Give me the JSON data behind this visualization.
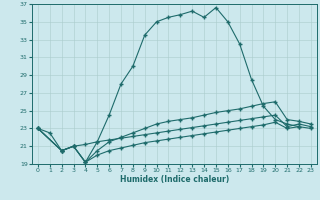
{
  "xlabel": "Humidex (Indice chaleur)",
  "xlim": [
    -0.5,
    23.5
  ],
  "ylim": [
    19,
    37
  ],
  "xticks": [
    0,
    1,
    2,
    3,
    4,
    5,
    6,
    7,
    8,
    9,
    10,
    11,
    12,
    13,
    14,
    15,
    16,
    17,
    18,
    19,
    20,
    21,
    22,
    23
  ],
  "yticks": [
    19,
    21,
    23,
    25,
    27,
    29,
    31,
    33,
    35,
    37
  ],
  "bg_color": "#cce8ed",
  "line_color": "#1e6b6b",
  "grid_color": "#aacccc",
  "line1_x": [
    0,
    1,
    2,
    3,
    4,
    5,
    6,
    7,
    8,
    9,
    10,
    11,
    12,
    13,
    14,
    15,
    16,
    17,
    18,
    19,
    20,
    21,
    22
  ],
  "line1_y": [
    23.0,
    22.5,
    20.5,
    21.0,
    19.2,
    21.5,
    24.5,
    28.0,
    30.0,
    33.5,
    35.0,
    35.5,
    35.8,
    36.2,
    35.5,
    36.6,
    35.0,
    32.5,
    28.5,
    25.5,
    24.0,
    23.5,
    23.2
  ],
  "line2_x": [
    0,
    2,
    3,
    4,
    5,
    6,
    7,
    8,
    9,
    10,
    11,
    12,
    13,
    14,
    15,
    16,
    17,
    18,
    19,
    20,
    21,
    22,
    23
  ],
  "line2_y": [
    23.0,
    20.5,
    21.0,
    19.2,
    20.5,
    21.5,
    22.0,
    22.5,
    23.0,
    23.5,
    23.8,
    24.0,
    24.2,
    24.5,
    24.8,
    25.0,
    25.2,
    25.5,
    25.8,
    26.0,
    24.0,
    23.8,
    23.5
  ],
  "line3_x": [
    0,
    2,
    3,
    4,
    5,
    6,
    7,
    8,
    9,
    10,
    11,
    12,
    13,
    14,
    15,
    16,
    17,
    18,
    19,
    20,
    21,
    22,
    23
  ],
  "line3_y": [
    23.0,
    20.5,
    21.0,
    21.2,
    21.5,
    21.7,
    21.9,
    22.1,
    22.3,
    22.5,
    22.7,
    22.9,
    23.1,
    23.3,
    23.5,
    23.7,
    23.9,
    24.1,
    24.3,
    24.5,
    23.2,
    23.5,
    23.2
  ],
  "line4_x": [
    0,
    2,
    3,
    4,
    5,
    6,
    7,
    8,
    9,
    10,
    11,
    12,
    13,
    14,
    15,
    16,
    17,
    18,
    19,
    20,
    21,
    22,
    23
  ],
  "line4_y": [
    23.0,
    20.5,
    21.0,
    19.2,
    20.0,
    20.5,
    20.8,
    21.1,
    21.4,
    21.6,
    21.8,
    22.0,
    22.2,
    22.4,
    22.6,
    22.8,
    23.0,
    23.2,
    23.4,
    23.7,
    23.0,
    23.2,
    23.0
  ]
}
